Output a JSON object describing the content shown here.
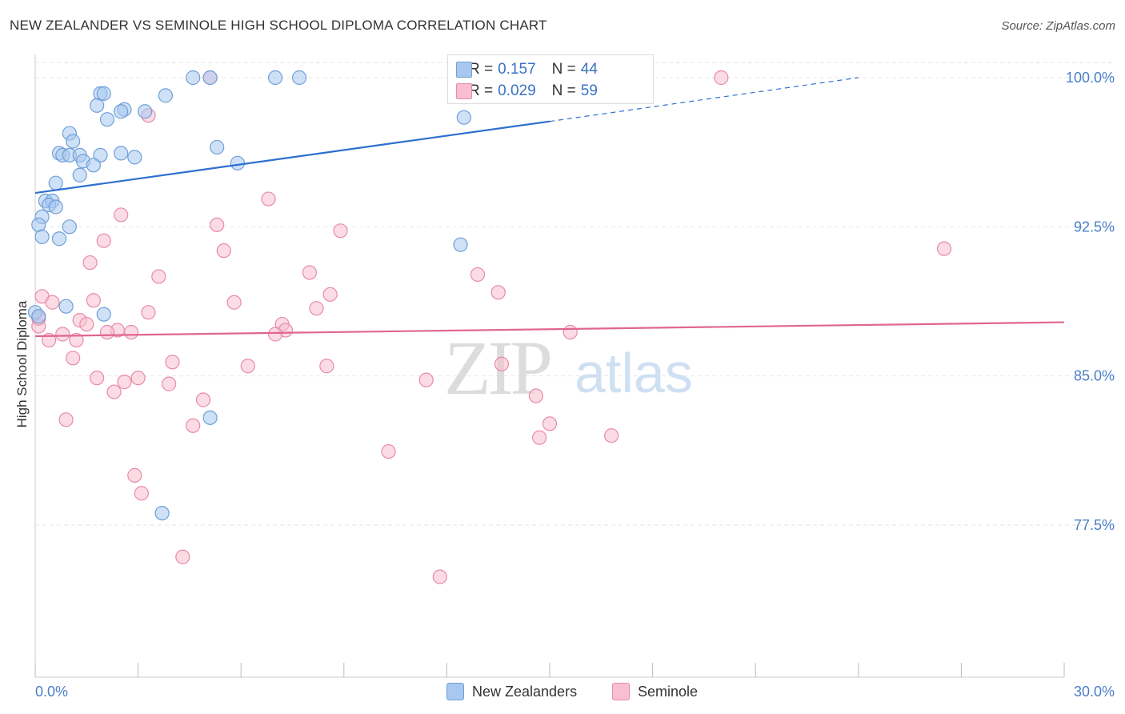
{
  "title": "NEW ZEALANDER VS SEMINOLE HIGH SCHOOL DIPLOMA CORRELATION CHART",
  "source": "Source: ZipAtlas.com",
  "watermark": {
    "zip": "ZIP",
    "atlas": "atlas"
  },
  "legend_top": {
    "rows": [
      {
        "r_label": "R =",
        "r_value": "0.157",
        "n_label": "N =",
        "n_value": "44"
      },
      {
        "r_label": "R =",
        "r_value": "0.029",
        "n_label": "N =",
        "n_value": "59"
      }
    ]
  },
  "legend_bottom": [
    "New Zealanders",
    "Seminole"
  ],
  "colors": {
    "blue_fill": "#a8c8f0",
    "blue_stroke": "#6f9fd8",
    "blue_line": "#2d6fcf",
    "pink_fill": "#f7bfd0",
    "pink_stroke": "#e88aa8",
    "pink_line": "#e0668f",
    "tick_label": "#4a7fc8",
    "grid": "#e6e6e6"
  },
  "chart_data": {
    "type": "scatter",
    "title": "NEW ZEALANDER VS SEMINOLE HIGH SCHOOL DIPLOMA CORRELATION CHART",
    "xlabel": "",
    "ylabel": "High School Diploma",
    "xlim": [
      0,
      30
    ],
    "ylim": [
      70.5,
      101
    ],
    "x_tick_labels": [
      "0.0%",
      "30.0%"
    ],
    "y_ticks": [
      77.5,
      85.0,
      92.5,
      100.0
    ],
    "y_tick_labels": [
      "77.5%",
      "85.0%",
      "92.5%",
      "100.0%"
    ],
    "grid": "horizontal dashed",
    "legend": "top-center and bottom",
    "series": [
      {
        "name": "New Zealanders",
        "color": "blue",
        "R": 0.157,
        "N": 44,
        "trend": {
          "x0": 0.0,
          "y0": 94.2,
          "x1": 15.0,
          "y1": 97.8,
          "dashed_to_x": 24.0,
          "dashed_to_y": 100.0
        },
        "points": [
          [
            4.6,
            100.0
          ],
          [
            5.1,
            100.0
          ],
          [
            7.0,
            100.0
          ],
          [
            7.7,
            100.0
          ],
          [
            1.9,
            99.2
          ],
          [
            2.0,
            99.2
          ],
          [
            3.8,
            99.1
          ],
          [
            1.8,
            98.6
          ],
          [
            2.6,
            98.4
          ],
          [
            2.5,
            98.3
          ],
          [
            3.2,
            98.3
          ],
          [
            12.5,
            98.0
          ],
          [
            2.1,
            97.9
          ],
          [
            1.0,
            97.2
          ],
          [
            1.1,
            96.8
          ],
          [
            5.3,
            96.5
          ],
          [
            0.7,
            96.2
          ],
          [
            0.8,
            96.1
          ],
          [
            1.0,
            96.1
          ],
          [
            1.3,
            96.1
          ],
          [
            2.5,
            96.2
          ],
          [
            1.9,
            96.1
          ],
          [
            2.9,
            96.0
          ],
          [
            1.4,
            95.8
          ],
          [
            1.7,
            95.6
          ],
          [
            5.9,
            95.7
          ],
          [
            1.3,
            95.1
          ],
          [
            0.6,
            94.7
          ],
          [
            0.3,
            93.8
          ],
          [
            0.5,
            93.8
          ],
          [
            0.4,
            93.6
          ],
          [
            0.6,
            93.5
          ],
          [
            0.2,
            93.0
          ],
          [
            0.1,
            92.6
          ],
          [
            1.0,
            92.5
          ],
          [
            0.2,
            92.0
          ],
          [
            0.7,
            91.9
          ],
          [
            12.4,
            91.6
          ],
          [
            0.0,
            88.2
          ],
          [
            0.9,
            88.5
          ],
          [
            2.0,
            88.1
          ],
          [
            5.1,
            82.9
          ],
          [
            3.7,
            78.1
          ],
          [
            0.1,
            88.0
          ]
        ]
      },
      {
        "name": "Seminole",
        "color": "pink",
        "R": 0.029,
        "N": 59,
        "trend": {
          "x0": 0.0,
          "y0": 87.0,
          "x1": 30.0,
          "y1": 87.7
        },
        "points": [
          [
            5.1,
            100.0
          ],
          [
            20.0,
            100.0
          ],
          [
            3.3,
            98.1
          ],
          [
            6.8,
            93.9
          ],
          [
            2.5,
            93.1
          ],
          [
            5.3,
            92.6
          ],
          [
            8.9,
            92.3
          ],
          [
            26.5,
            91.4
          ],
          [
            2.0,
            91.8
          ],
          [
            5.5,
            91.3
          ],
          [
            1.6,
            90.7
          ],
          [
            3.6,
            90.0
          ],
          [
            8.0,
            90.2
          ],
          [
            12.9,
            90.1
          ],
          [
            0.2,
            89.0
          ],
          [
            1.7,
            88.8
          ],
          [
            5.8,
            88.7
          ],
          [
            0.5,
            88.7
          ],
          [
            13.5,
            89.2
          ],
          [
            8.6,
            89.1
          ],
          [
            8.2,
            88.4
          ],
          [
            3.3,
            88.2
          ],
          [
            1.3,
            87.8
          ],
          [
            1.5,
            87.6
          ],
          [
            0.1,
            87.5
          ],
          [
            7.2,
            87.6
          ],
          [
            7.3,
            87.3
          ],
          [
            2.4,
            87.3
          ],
          [
            15.6,
            87.2
          ],
          [
            2.1,
            87.2
          ],
          [
            2.8,
            87.2
          ],
          [
            7.0,
            87.1
          ],
          [
            0.8,
            87.1
          ],
          [
            0.4,
            86.8
          ],
          [
            1.2,
            86.8
          ],
          [
            1.1,
            85.9
          ],
          [
            4.0,
            85.7
          ],
          [
            6.2,
            85.5
          ],
          [
            8.5,
            85.5
          ],
          [
            13.6,
            85.6
          ],
          [
            1.8,
            84.9
          ],
          [
            3.0,
            84.9
          ],
          [
            2.6,
            84.7
          ],
          [
            3.9,
            84.6
          ],
          [
            11.4,
            84.8
          ],
          [
            2.3,
            84.2
          ],
          [
            14.6,
            84.0
          ],
          [
            4.9,
            83.8
          ],
          [
            0.9,
            82.8
          ],
          [
            4.6,
            82.5
          ],
          [
            15.0,
            82.6
          ],
          [
            14.7,
            81.9
          ],
          [
            16.8,
            82.0
          ],
          [
            10.3,
            81.2
          ],
          [
            2.9,
            80.0
          ],
          [
            3.1,
            79.1
          ],
          [
            4.3,
            75.9
          ],
          [
            11.8,
            74.9
          ],
          [
            0.1,
            87.9
          ]
        ]
      }
    ]
  }
}
